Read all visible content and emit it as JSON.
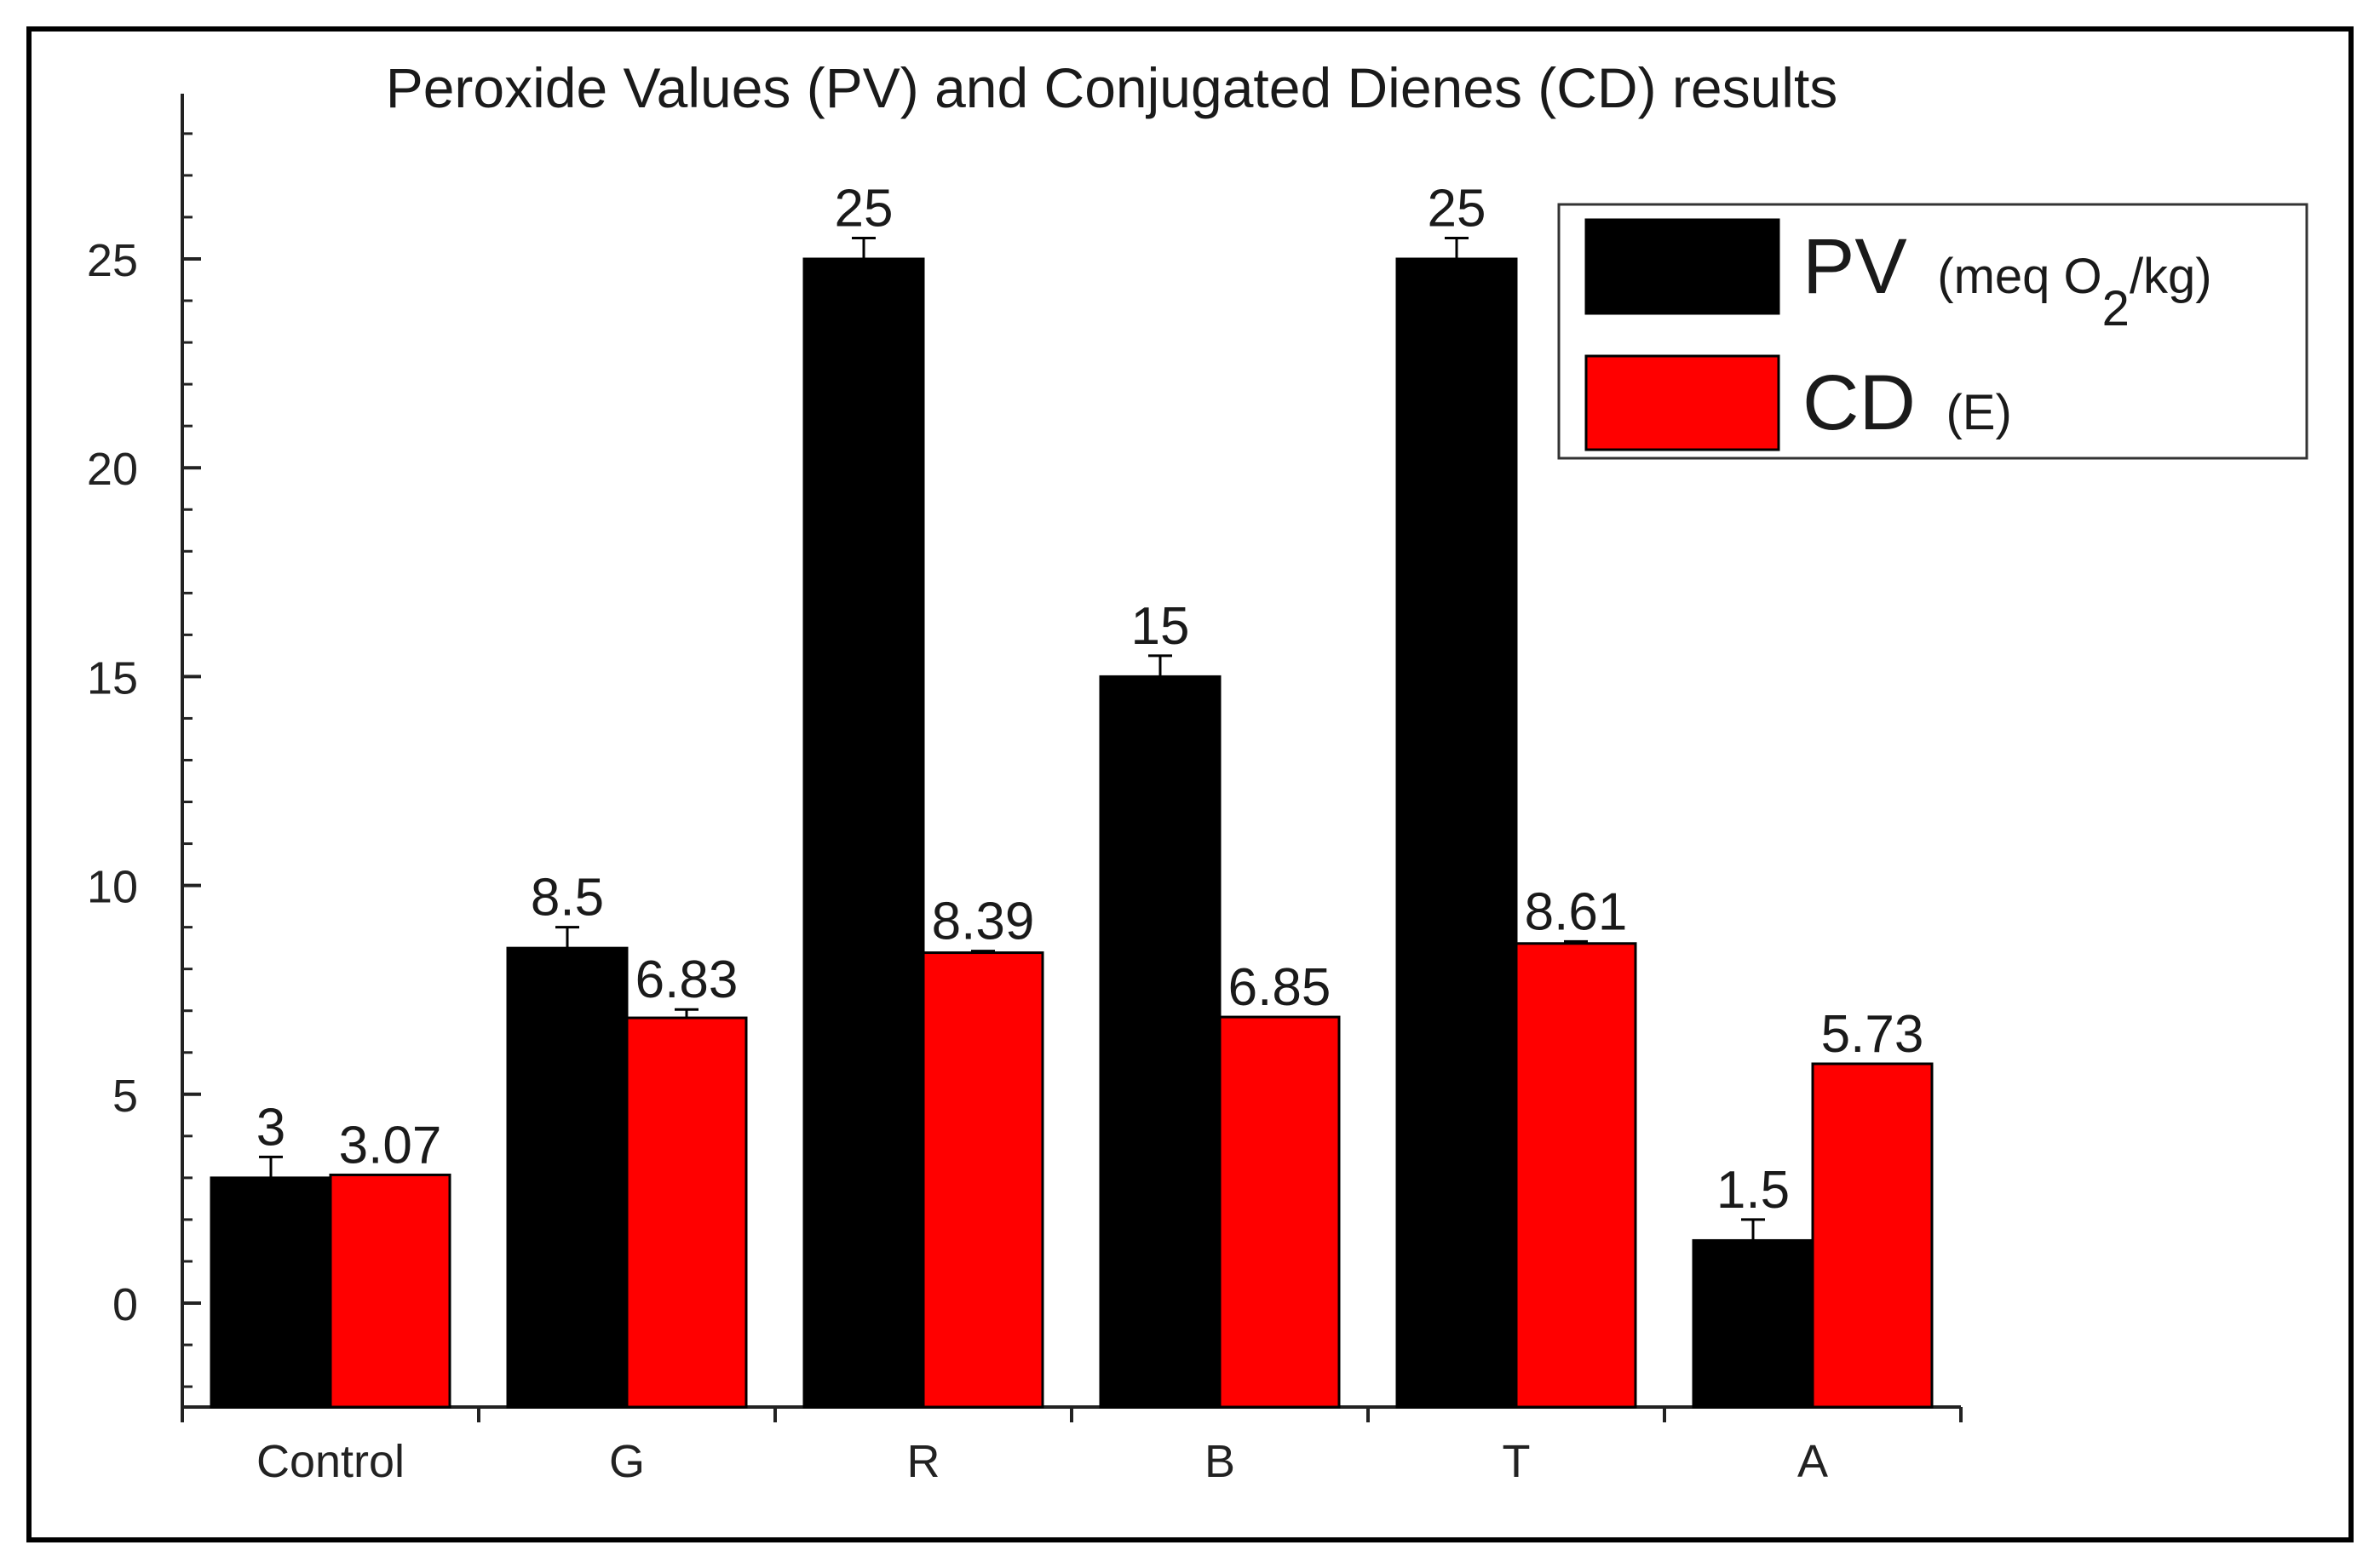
{
  "chart_data": {
    "type": "bar",
    "title": "Peroxide Values (PV) and Conjugated Dienes (CD) results",
    "xlabel": "",
    "ylabel": "",
    "categories": [
      "Control",
      "G",
      "R",
      "B",
      "T",
      "A"
    ],
    "ylim": [
      -2.5,
      29
    ],
    "yticks": [
      0,
      5,
      10,
      15,
      20,
      25
    ],
    "yticks_labels": [
      "0",
      "5",
      "10",
      "15",
      "20",
      "25"
    ],
    "grid": false,
    "legend_position": "top-right",
    "series": [
      {
        "name": "PV",
        "legend_unit": "(meq O2/kg)",
        "legend_unit_parts": {
          "pre": "(meq O",
          "sub": "2",
          "post": "/kg)"
        },
        "color": "#000000",
        "values": [
          3,
          8.5,
          25,
          15,
          25,
          1.5
        ],
        "errors": [
          0.5,
          0.5,
          0.5,
          0.5,
          0.5,
          0.5
        ],
        "value_labels": [
          "3",
          "8.5",
          "25",
          "15",
          "25",
          "1.5"
        ]
      },
      {
        "name": "CD",
        "legend_unit": "(E)",
        "color": "#ff0000",
        "values": [
          3.07,
          6.83,
          8.39,
          6.85,
          8.61,
          5.73
        ],
        "errors": [
          0,
          0.2,
          0.04,
          0,
          0.05,
          0
        ],
        "value_labels": [
          "3.07",
          "6.83",
          "8.39",
          "6.85",
          "8.61",
          "5.73"
        ]
      }
    ]
  }
}
